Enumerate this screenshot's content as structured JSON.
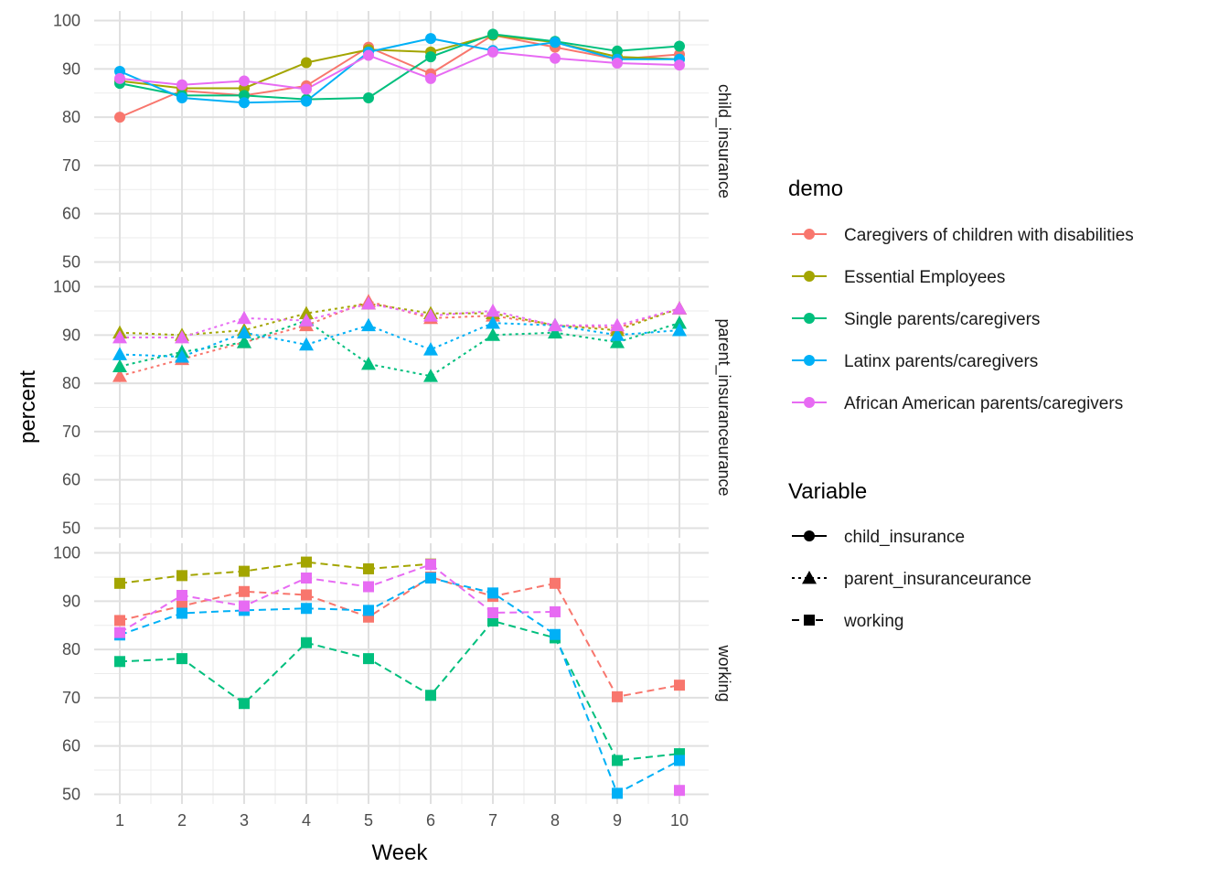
{
  "chart_data": {
    "type": "line",
    "x": [
      1,
      2,
      3,
      4,
      5,
      6,
      7,
      8,
      9,
      10
    ],
    "xlabel": "Week",
    "ylabel": "percent",
    "ylim": [
      48,
      102
    ],
    "yticks": [
      50,
      60,
      70,
      80,
      90,
      100
    ],
    "grid": true,
    "legend_position": "right",
    "demo_legend": {
      "title": "demo",
      "entries": [
        {
          "name": "Caregivers of children with disabilities",
          "color": "#F8766D"
        },
        {
          "name": "Essential Employees",
          "color": "#A3A500"
        },
        {
          "name": "Single parents/caregivers",
          "color": "#00BF7D"
        },
        {
          "name": "Latinx parents/caregivers",
          "color": "#00B0F6"
        },
        {
          "name": "African American parents/caregivers",
          "color": "#E76BF3"
        }
      ]
    },
    "variable_legend": {
      "title": "Variable",
      "entries": [
        {
          "name": "child_insurance",
          "shape": "circle",
          "linetype": "solid"
        },
        {
          "name": "parent_insuranceurance",
          "shape": "triangle",
          "linetype": "dotted"
        },
        {
          "name": "working",
          "shape": "square",
          "linetype": "dashed"
        }
      ]
    },
    "panels": [
      {
        "variable": "child_insurance",
        "strip_label": "child_insurance",
        "shape": "circle",
        "linetype": "solid",
        "series": [
          {
            "name": "Caregivers of children with disabilities",
            "values": [
              80,
              85.5,
              84.5,
              86.5,
              94.5,
              89,
              97,
              94.5,
              92,
              93
            ]
          },
          {
            "name": "Essential Employees",
            "values": [
              87.5,
              86,
              86,
              91.3,
              94,
              93.5,
              97,
              95.5,
              92.5,
              92
            ]
          },
          {
            "name": "Single parents/caregivers",
            "values": [
              87,
              84.5,
              84.5,
              83.7,
              84,
              92.5,
              97.2,
              95.7,
              93.7,
              94.7
            ]
          },
          {
            "name": "Latinx parents/caregivers",
            "values": [
              89.5,
              84,
              83,
              83.3,
              93.5,
              96.3,
              93.8,
              95.5,
              92,
              92
            ]
          },
          {
            "name": "African American parents/caregivers",
            "values": [
              88,
              86.7,
              87.5,
              85.8,
              92.8,
              88,
              93.5,
              92.2,
              91.2,
              90.8
            ]
          }
        ]
      },
      {
        "variable": "parent_insuranceurance",
        "strip_label": "parent_insuranceurance",
        "shape": "triangle",
        "linetype": "dotted",
        "series": [
          {
            "name": "Caregivers of children with disabilities",
            "values": [
              81.5,
              85,
              88.5,
              92,
              97,
              93.5,
              94,
              92,
              91.5,
              95.5
            ]
          },
          {
            "name": "Essential Employees",
            "values": [
              90.5,
              90,
              91,
              94.5,
              96.5,
              94.5,
              94.5,
              92,
              91,
              95.5
            ]
          },
          {
            "name": "Single parents/caregivers",
            "values": [
              83.5,
              86.5,
              88.5,
              93,
              84,
              81.5,
              90,
              90.5,
              88.5,
              92.5
            ]
          },
          {
            "name": "Latinx parents/caregivers",
            "values": [
              86,
              85.5,
              90.5,
              88,
              92,
              87,
              92.5,
              92,
              90,
              91
            ]
          },
          {
            "name": "African American parents/caregivers",
            "values": [
              89.5,
              89.5,
              93.5,
              93,
              96.5,
              94,
              95,
              92,
              92,
              95.5
            ]
          }
        ]
      },
      {
        "variable": "working",
        "strip_label": "working",
        "shape": "square",
        "linetype": "dashed",
        "series": [
          {
            "name": "Caregivers of children with disabilities",
            "values": [
              86,
              89,
              92,
              91.3,
              86.7,
              95,
              91,
              93.7,
              70.2,
              72.6
            ]
          },
          {
            "name": "Essential Employees",
            "values": [
              93.7,
              95.3,
              96.2,
              98.1,
              96.7,
              97.7,
              null,
              null,
              null,
              null
            ]
          },
          {
            "name": "Single parents/caregivers",
            "values": [
              77.5,
              78.1,
              68.8,
              81.4,
              78.1,
              70.5,
              85.9,
              82.4,
              57,
              58.4
            ]
          },
          {
            "name": "Latinx parents/caregivers",
            "values": [
              83,
              87.5,
              88.1,
              88.5,
              88.1,
              94.8,
              91.7,
              83.1,
              50.2,
              57
            ]
          },
          {
            "name": "African American parents/caregivers",
            "values": [
              83.5,
              91.2,
              89,
              94.8,
              93,
              97.6,
              87.6,
              87.8,
              null,
              50.8
            ]
          }
        ]
      }
    ]
  }
}
